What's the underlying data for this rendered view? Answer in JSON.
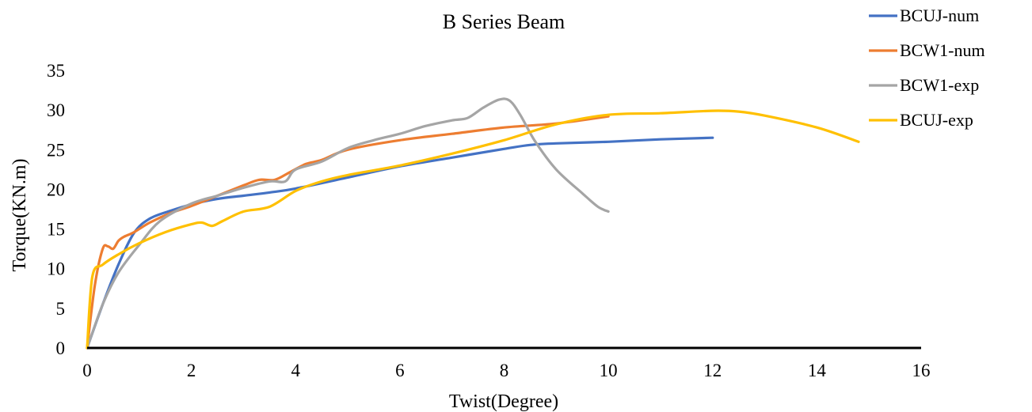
{
  "chart_data": {
    "type": "line",
    "title": "B Series Beam",
    "xlabel": "Twist(Degree)",
    "ylabel": "Torque(KN.m)",
    "xlim": [
      0,
      16
    ],
    "ylim": [
      0,
      35
    ],
    "xticks": [
      0,
      2,
      4,
      6,
      8,
      10,
      12,
      14,
      16
    ],
    "yticks": [
      0,
      5,
      10,
      15,
      20,
      25,
      30,
      35
    ],
    "grid": false,
    "legend_position": "top-right",
    "series": [
      {
        "name": "BCUJ-num",
        "color": "#4472C4",
        "x": [
          0,
          0.3,
          0.6,
          0.9,
          1.2,
          1.6,
          2.0,
          2.5,
          3.0,
          3.5,
          4.0,
          5.0,
          6.0,
          7.0,
          8.0,
          8.5,
          9.0,
          10.0,
          11.0,
          12.0
        ],
        "y": [
          0,
          5.5,
          10.5,
          14.5,
          16.3,
          17.3,
          18.1,
          18.8,
          19.2,
          19.6,
          20.1,
          21.5,
          22.9,
          24.0,
          25.1,
          25.6,
          25.8,
          26.0,
          26.3,
          26.5
        ]
      },
      {
        "name": "BCW1-num",
        "color": "#ED7D31",
        "x": [
          0,
          0.15,
          0.3,
          0.4,
          0.5,
          0.6,
          0.7,
          0.9,
          1.2,
          1.6,
          2.0,
          2.5,
          3.0,
          3.3,
          3.6,
          3.9,
          4.2,
          4.5,
          5.0,
          6.0,
          7.0,
          8.0,
          9.0,
          10.0
        ],
        "y": [
          0,
          8.0,
          12.5,
          12.8,
          12.5,
          13.5,
          14.0,
          14.6,
          15.8,
          17.0,
          17.9,
          19.2,
          20.5,
          21.2,
          21.2,
          22.2,
          23.2,
          23.7,
          25.0,
          26.2,
          27.0,
          27.8,
          28.3,
          29.2
        ]
      },
      {
        "name": "BCW1-exp",
        "color": "#A5A5A5",
        "x": [
          0,
          0.3,
          0.6,
          1.0,
          1.4,
          2.0,
          2.5,
          3.0,
          3.5,
          3.8,
          4.0,
          4.5,
          5.0,
          5.5,
          6.0,
          6.5,
          7.0,
          7.3,
          7.6,
          7.9,
          8.1,
          8.3,
          8.6,
          9.0,
          9.5,
          9.8,
          10.0
        ],
        "y": [
          0,
          5.5,
          9.5,
          13.0,
          16.0,
          18.2,
          19.2,
          20.2,
          21.0,
          21.0,
          22.5,
          23.5,
          25.2,
          26.2,
          27.0,
          28.0,
          28.7,
          29.0,
          30.3,
          31.3,
          31.2,
          29.5,
          26.0,
          22.5,
          19.5,
          17.8,
          17.2
        ]
      },
      {
        "name": "BCUJ-exp",
        "color": "#FFC000",
        "x": [
          0,
          0.1,
          0.3,
          0.6,
          1.0,
          1.5,
          2.0,
          2.2,
          2.4,
          2.6,
          3.0,
          3.5,
          4.0,
          4.5,
          5.0,
          6.0,
          7.0,
          8.0,
          9.0,
          10.0,
          11.0,
          12.0,
          12.5,
          13.0,
          14.0,
          14.8
        ],
        "y": [
          0,
          9.0,
          10.5,
          11.8,
          13.2,
          14.6,
          15.6,
          15.8,
          15.4,
          16.0,
          17.2,
          17.8,
          19.8,
          21.0,
          21.8,
          23.0,
          24.5,
          26.2,
          28.2,
          29.4,
          29.6,
          29.9,
          29.8,
          29.3,
          27.8,
          26.0
        ]
      }
    ]
  }
}
